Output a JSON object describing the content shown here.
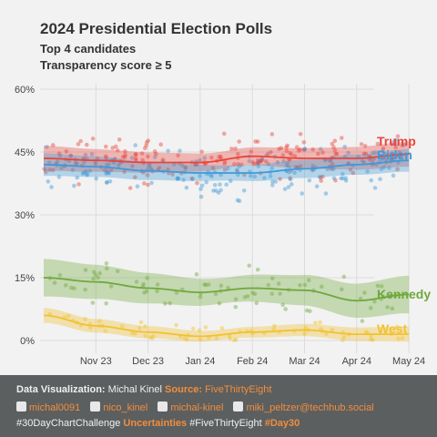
{
  "header": {
    "title": "2024 Presidential Election Polls",
    "subtitle_1": "Top 4 candidates",
    "subtitle_2": "Transparency score ≥ 5"
  },
  "chart_data": {
    "type": "scatter",
    "y_ticks": [
      "60%",
      "45%",
      "30%",
      "15%",
      "0%"
    ],
    "y_tick_values": [
      60,
      45,
      30,
      15,
      0
    ],
    "ylim": [
      -3,
      62
    ],
    "x_ticks": [
      "Nov 23",
      "Dec 23",
      "Jan 24",
      "Feb 24",
      "Mar 24",
      "Apr 24",
      "May 24"
    ],
    "x_tick_values": [
      1,
      2,
      3,
      4,
      5,
      6,
      7
    ],
    "xlim": [
      0,
      7
    ],
    "grid": true,
    "series": [
      {
        "name": "Trump",
        "color": "#e8453c",
        "trend": [
          [
            0,
            43.5
          ],
          [
            1,
            43
          ],
          [
            2,
            42.5
          ],
          [
            3,
            42.5
          ],
          [
            4,
            44
          ],
          [
            5,
            43.5
          ],
          [
            6,
            43.5
          ],
          [
            7,
            44.5
          ]
        ],
        "band": 2.0,
        "spread": 4.5,
        "points": 190
      },
      {
        "name": "Biden",
        "color": "#3d9ad8",
        "trend": [
          [
            0,
            42
          ],
          [
            1,
            41.5
          ],
          [
            2,
            40.5
          ],
          [
            3,
            40
          ],
          [
            4,
            40
          ],
          [
            5,
            41
          ],
          [
            6,
            42
          ],
          [
            7,
            43
          ]
        ],
        "band": 1.8,
        "spread": 4.5,
        "points": 190
      },
      {
        "name": "Kennedy",
        "color": "#6fa83c",
        "trend": [
          [
            0,
            15
          ],
          [
            1,
            14
          ],
          [
            2,
            12.5
          ],
          [
            3,
            11.5
          ],
          [
            4,
            12.5
          ],
          [
            5,
            12
          ],
          [
            6,
            9.5
          ],
          [
            7,
            11
          ]
        ],
        "band": 3.0,
        "spread": 4.0,
        "points": 80
      },
      {
        "name": "West",
        "color": "#f2c12e",
        "trend": [
          [
            0,
            6
          ],
          [
            1,
            3.5
          ],
          [
            2,
            2
          ],
          [
            3,
            1
          ],
          [
            4,
            2
          ],
          [
            5,
            2.5
          ],
          [
            6,
            1.5
          ],
          [
            7,
            1.5
          ]
        ],
        "band": 1.2,
        "spread": 1.8,
        "points": 70
      }
    ]
  },
  "footer": {
    "viz_label": "Data Visualization:",
    "viz_author": "Michal Kinel",
    "source_label": "Source:",
    "source_value": "FiveThirtyEight",
    "social_github": "michal0091",
    "social_twitter": "nico_kinel",
    "social_linkedin": "michal-kinel",
    "social_mastodon": "miki_peltzer@techhub.social",
    "tag_1": "#30DayChartChallenge",
    "tag_2": "Uncertainties",
    "tag_3": "#FiveThirtyEight",
    "tag_4": "#Day30"
  }
}
